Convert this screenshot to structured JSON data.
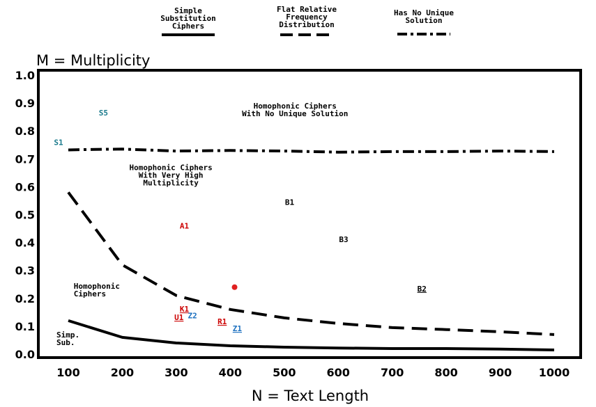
{
  "chart_data": {
    "type": "line",
    "ylabel": "M = Multiplicity",
    "xlabel": "N = Text Length",
    "xlim": [
      100,
      1000
    ],
    "ylim": [
      0.0,
      1.0
    ],
    "x_ticks": [
      "100",
      "200",
      "300",
      "400",
      "500",
      "600",
      "700",
      "800",
      "900",
      "1000"
    ],
    "y_ticks": [
      "0.0",
      "0.1",
      "0.2",
      "0.3",
      "0.4",
      "0.5",
      "0.6",
      "0.7",
      "0.8",
      "0.9",
      "1.0"
    ],
    "legend": [
      {
        "lines": [
          "Simple",
          "Substitution",
          "Ciphers"
        ],
        "style": "solid"
      },
      {
        "lines": [
          "Flat Relative",
          "Frequency",
          "Distribution"
        ],
        "style": "dashed"
      },
      {
        "lines": [
          "Has No Unique",
          "Solution"
        ],
        "style": "dashdot"
      }
    ],
    "series": [
      {
        "style": "solid",
        "x": [
          100,
          200,
          300,
          400,
          500,
          600,
          700,
          800,
          900,
          1000
        ],
        "y": [
          0.12,
          0.06,
          0.04,
          0.03,
          0.025,
          0.022,
          0.02,
          0.02,
          0.018,
          0.015
        ]
      },
      {
        "style": "dashed",
        "x": [
          100,
          200,
          300,
          400,
          500,
          600,
          700,
          800,
          900,
          1000
        ],
        "y": [
          0.58,
          0.32,
          0.21,
          0.16,
          0.13,
          0.11,
          0.095,
          0.088,
          0.08,
          0.07
        ]
      },
      {
        "style": "dashdot",
        "x": [
          100,
          150,
          200,
          300,
          400,
          500,
          600,
          700,
          800,
          900,
          1000
        ],
        "y": [
          0.732,
          0.734,
          0.735,
          0.728,
          0.73,
          0.728,
          0.724,
          0.726,
          0.726,
          0.728,
          0.726
        ]
      }
    ],
    "region_labels": [
      {
        "lines": [
          "Homophonic Ciphers",
          "With No Unique Solution"
        ],
        "x": 520,
        "y": 0.88
      },
      {
        "lines": [
          "Homophonic Ciphers",
          "With Very High",
          "Multiplicity"
        ],
        "x": 290,
        "y": 0.66
      },
      {
        "lines": [
          "Homophonic",
          "Ciphers"
        ],
        "x": 110,
        "y": 0.235
      },
      {
        "lines": [
          "Simp.",
          "Sub."
        ],
        "x": 78,
        "y": 0.06
      }
    ],
    "points": [
      {
        "label": "S5",
        "x": 165,
        "y": 0.855,
        "color": "#1a7a8c",
        "underline": false
      },
      {
        "label": "S1",
        "x": 82,
        "y": 0.75,
        "color": "#1a7a8c",
        "underline": false
      },
      {
        "label": "B1",
        "x": 510,
        "y": 0.535,
        "color": "#000000",
        "underline": false
      },
      {
        "label": "A1",
        "x": 315,
        "y": 0.45,
        "color": "#cc0000",
        "underline": false
      },
      {
        "label": "B3",
        "x": 610,
        "y": 0.402,
        "color": "#000000",
        "underline": false
      },
      {
        "label": "B2",
        "x": 755,
        "y": 0.225,
        "color": "#000000",
        "underline": true
      },
      {
        "label": "K1",
        "x": 315,
        "y": 0.152,
        "color": "#cc0000",
        "underline": true
      },
      {
        "label": "U1",
        "x": 305,
        "y": 0.122,
        "color": "#cc0000",
        "underline": true
      },
      {
        "label": "Z2",
        "x": 330,
        "y": 0.128,
        "color": "#1a6fbf",
        "underline": false
      },
      {
        "label": "R1",
        "x": 385,
        "y": 0.107,
        "color": "#cc0000",
        "underline": true
      },
      {
        "label": "Z1",
        "x": 413,
        "y": 0.082,
        "color": "#1a6fbf",
        "underline": true
      }
    ],
    "markers": [
      {
        "x": 408,
        "y": 0.24,
        "color": "#e02020"
      }
    ]
  }
}
